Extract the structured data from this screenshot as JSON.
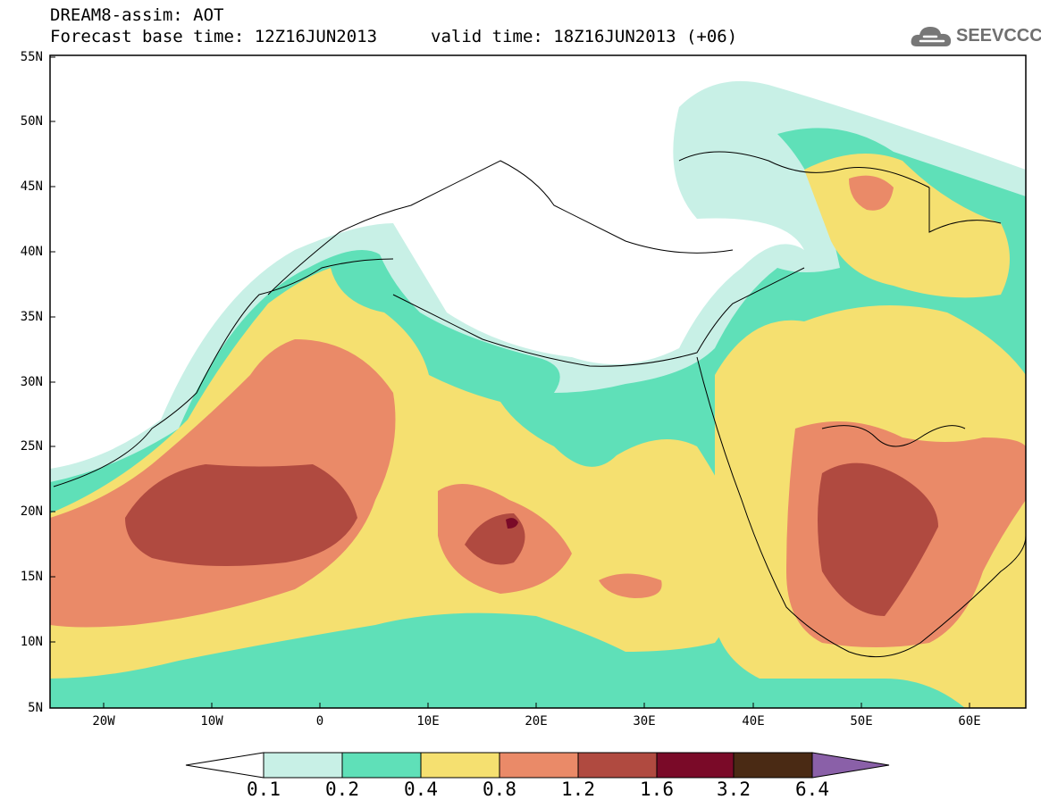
{
  "header": {
    "title_line1": "DREAM8-assim: AOT",
    "title_line2": "Forecast base time: 12Z16JUN2013",
    "valid_time": "valid time: 18Z16JUN2013 (+06)"
  },
  "brand": {
    "name": "SEEVCCC",
    "icon": "cloud-icon"
  },
  "map": {
    "variable": "AOT",
    "lat_labels": [
      "55N",
      "50N",
      "45N",
      "40N",
      "35N",
      "30N",
      "25N",
      "20N",
      "15N",
      "10N",
      "5N"
    ],
    "lon_labels": [
      "20W",
      "10W",
      "0",
      "10E",
      "20E",
      "30E",
      "40E",
      "50E",
      "60E"
    ],
    "lat_range": [
      5,
      55
    ],
    "lon_range": [
      -25,
      65
    ]
  },
  "colorbar": {
    "levels": [
      "0.1",
      "0.2",
      "0.4",
      "0.8",
      "1.2",
      "1.6",
      "3.2",
      "6.4"
    ],
    "colors": [
      "#ffffff",
      "#c8f0e6",
      "#5fe0b8",
      "#f5e070",
      "#ea8a68",
      "#b04a40",
      "#7a0a28",
      "#4a2a14",
      "#8a60a8"
    ]
  }
}
